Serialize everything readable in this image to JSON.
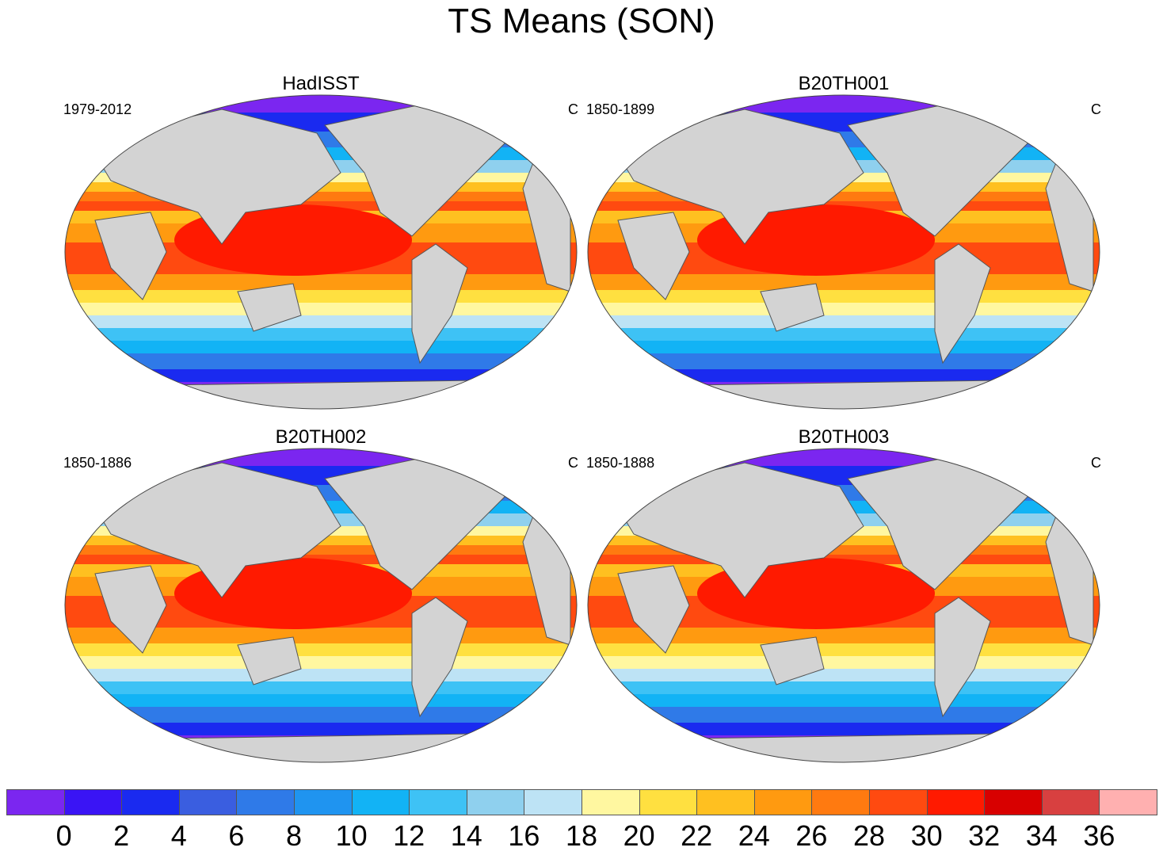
{
  "title": "TS Means (SON)",
  "panels": [
    {
      "title": "HadISST",
      "period": "1979-2012",
      "units": "C"
    },
    {
      "title": "B20TH001",
      "period": "1850-1899",
      "units": "C"
    },
    {
      "title": "B20TH002",
      "period": "1850-1886",
      "units": "C"
    },
    {
      "title": "B20TH003",
      "period": "1850-1888",
      "units": "C"
    }
  ],
  "colorbar": {
    "colors": [
      "#7b26f0",
      "#3a14f5",
      "#1a2af0",
      "#3a5ee0",
      "#2f7ae8",
      "#1f94f0",
      "#12b3f5",
      "#3ec2f5",
      "#8fd0ee",
      "#bde3f5",
      "#fff7a0",
      "#ffe040",
      "#ffc020",
      "#ff9a10",
      "#ff7a10",
      "#ff4a10",
      "#ff1a00",
      "#d80000",
      "#d84040",
      "#ffb0b0"
    ],
    "labels": [
      "0",
      "2",
      "4",
      "6",
      "8",
      "10",
      "12",
      "14",
      "16",
      "18",
      "20",
      "22",
      "24",
      "26",
      "28",
      "30",
      "32",
      "34",
      "36"
    ]
  }
}
